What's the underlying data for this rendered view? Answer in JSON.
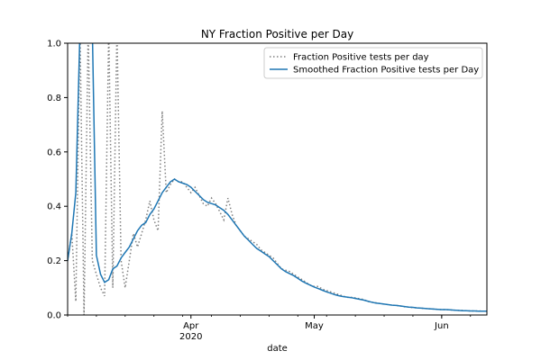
{
  "chart_data": {
    "type": "line",
    "title": "NY Fraction Positive per Day",
    "xlabel": "date",
    "ylabel": "",
    "xlim": [
      "2020-03-02",
      "2020-06-12"
    ],
    "ylim": [
      0.0,
      1.0
    ],
    "grid": false,
    "legend_position": "top-right",
    "x_ticks": [
      {
        "date": "2020-04-01",
        "label": "Apr",
        "sublabel": "2020"
      },
      {
        "date": "2020-05-01",
        "label": "May",
        "sublabel": ""
      },
      {
        "date": "2020-06-01",
        "label": "Jun",
        "sublabel": ""
      }
    ],
    "y_ticks": [
      "0.0",
      "0.2",
      "0.4",
      "0.6",
      "0.8",
      "1.0"
    ],
    "x": [
      "2020-03-02",
      "2020-03-03",
      "2020-03-04",
      "2020-03-05",
      "2020-03-06",
      "2020-03-07",
      "2020-03-08",
      "2020-03-09",
      "2020-03-10",
      "2020-03-11",
      "2020-03-12",
      "2020-03-13",
      "2020-03-14",
      "2020-03-15",
      "2020-03-16",
      "2020-03-17",
      "2020-03-18",
      "2020-03-19",
      "2020-03-20",
      "2020-03-21",
      "2020-03-22",
      "2020-03-23",
      "2020-03-24",
      "2020-03-25",
      "2020-03-26",
      "2020-03-27",
      "2020-03-28",
      "2020-03-29",
      "2020-03-30",
      "2020-03-31",
      "2020-04-01",
      "2020-04-02",
      "2020-04-03",
      "2020-04-04",
      "2020-04-05",
      "2020-04-06",
      "2020-04-07",
      "2020-04-08",
      "2020-04-09",
      "2020-04-10",
      "2020-04-11",
      "2020-04-12",
      "2020-04-13",
      "2020-04-14",
      "2020-04-15",
      "2020-04-16",
      "2020-04-17",
      "2020-04-18",
      "2020-04-19",
      "2020-04-20",
      "2020-04-21",
      "2020-04-22",
      "2020-04-23",
      "2020-04-24",
      "2020-04-25",
      "2020-04-26",
      "2020-04-27",
      "2020-04-28",
      "2020-04-29",
      "2020-04-30",
      "2020-05-01",
      "2020-05-02",
      "2020-05-03",
      "2020-05-04",
      "2020-05-05",
      "2020-05-06",
      "2020-05-07",
      "2020-05-08",
      "2020-05-09",
      "2020-05-10",
      "2020-05-11",
      "2020-05-12",
      "2020-05-13",
      "2020-05-14",
      "2020-05-15",
      "2020-05-16",
      "2020-05-17",
      "2020-05-18",
      "2020-05-19",
      "2020-05-20",
      "2020-05-21",
      "2020-05-22",
      "2020-05-23",
      "2020-05-24",
      "2020-05-25",
      "2020-05-26",
      "2020-05-27",
      "2020-05-28",
      "2020-05-29",
      "2020-05-30",
      "2020-05-31",
      "2020-06-01",
      "2020-06-02",
      "2020-06-03",
      "2020-06-04",
      "2020-06-05",
      "2020-06-06",
      "2020-06-07",
      "2020-06-08",
      "2020-06-09",
      "2020-06-10",
      "2020-06-11",
      "2020-06-12"
    ],
    "series": [
      {
        "name": "Fraction Positive tests per day",
        "style": "dotted",
        "color": "#808080",
        "values": [
          0.2,
          0.3,
          0.05,
          1.05,
          0.0,
          1.05,
          0.2,
          0.15,
          0.1,
          0.07,
          1.05,
          0.1,
          1.05,
          0.2,
          0.1,
          0.2,
          0.3,
          0.25,
          0.3,
          0.35,
          0.42,
          0.35,
          0.31,
          0.75,
          0.45,
          0.48,
          0.5,
          0.49,
          0.49,
          0.47,
          0.45,
          0.47,
          0.44,
          0.41,
          0.4,
          0.43,
          0.41,
          0.38,
          0.35,
          0.43,
          0.37,
          0.33,
          0.31,
          0.29,
          0.28,
          0.27,
          0.26,
          0.24,
          0.23,
          0.22,
          0.21,
          0.19,
          0.17,
          0.165,
          0.16,
          0.15,
          0.14,
          0.13,
          0.12,
          0.11,
          0.105,
          0.105,
          0.095,
          0.09,
          0.085,
          0.08,
          0.075,
          0.07,
          0.065,
          0.065,
          0.063,
          0.06,
          0.057,
          0.05,
          0.047,
          0.045,
          0.042,
          0.04,
          0.038,
          0.036,
          0.035,
          0.033,
          0.03,
          0.029,
          0.027,
          0.026,
          0.025,
          0.024,
          0.023,
          0.022,
          0.021,
          0.02,
          0.02,
          0.019,
          0.018,
          0.017,
          0.017,
          0.016,
          0.015,
          0.015,
          0.015,
          0.014,
          0.014
        ]
      },
      {
        "name": "Smoothed Fraction Positive tests per Day",
        "style": "solid",
        "color": "#1f77b4",
        "values": [
          0.2,
          0.3,
          0.45,
          1.05,
          null,
          null,
          1.05,
          0.22,
          0.15,
          0.12,
          0.13,
          0.17,
          0.18,
          0.21,
          0.23,
          0.25,
          0.28,
          0.31,
          0.33,
          0.34,
          0.37,
          0.39,
          0.42,
          0.45,
          0.47,
          0.49,
          0.5,
          0.49,
          0.485,
          0.48,
          0.47,
          0.455,
          0.44,
          0.425,
          0.415,
          0.41,
          0.405,
          0.395,
          0.385,
          0.37,
          0.35,
          0.33,
          0.31,
          0.29,
          0.275,
          0.26,
          0.245,
          0.235,
          0.225,
          0.215,
          0.2,
          0.185,
          0.17,
          0.16,
          0.152,
          0.145,
          0.135,
          0.125,
          0.117,
          0.11,
          0.103,
          0.097,
          0.091,
          0.085,
          0.08,
          0.075,
          0.071,
          0.068,
          0.066,
          0.064,
          0.061,
          0.058,
          0.055,
          0.051,
          0.047,
          0.044,
          0.042,
          0.04,
          0.038,
          0.036,
          0.035,
          0.033,
          0.031,
          0.029,
          0.028,
          0.026,
          0.025,
          0.024,
          0.023,
          0.022,
          0.021,
          0.02,
          0.02,
          0.019,
          0.018,
          0.017,
          0.016,
          0.016,
          0.015,
          0.015,
          0.014,
          0.014,
          0.014
        ]
      }
    ]
  }
}
